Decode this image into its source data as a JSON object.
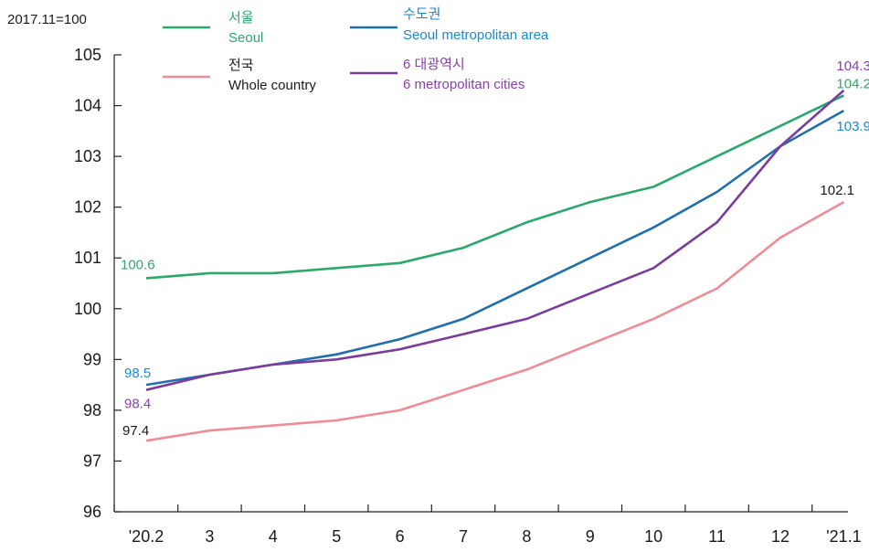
{
  "chart_data": {
    "type": "line",
    "base_label": "2017.11=100",
    "categories": [
      "'20.2",
      "3",
      "4",
      "5",
      "6",
      "7",
      "8",
      "9",
      "10",
      "11",
      "12",
      "'21.1"
    ],
    "ylim": [
      96,
      105
    ],
    "yticks": [
      "96",
      "97",
      "98",
      "99",
      "100",
      "101",
      "102",
      "103",
      "104",
      "105"
    ],
    "grid": false,
    "legend_position": "top",
    "series": [
      {
        "key": "seoul",
        "name_ko": "서울",
        "name_en": "Seoul",
        "color": "#2aa96b",
        "label_color": "#2aa96b",
        "values": [
          100.6,
          100.7,
          100.7,
          100.8,
          100.9,
          101.2,
          101.7,
          102.1,
          102.4,
          103.0,
          103.6,
          104.2
        ],
        "start_label": "100.6",
        "end_label": "104.2"
      },
      {
        "key": "capital",
        "name_ko": "수도권",
        "name_en": "Seoul metropolitan area",
        "color": "#1f6fb0",
        "label_color": "#1a8ad0",
        "values": [
          98.5,
          98.7,
          98.9,
          99.1,
          99.4,
          99.8,
          100.4,
          101.0,
          101.6,
          102.3,
          103.2,
          103.9
        ],
        "start_label": "98.5",
        "end_label": "103.9"
      },
      {
        "key": "whole",
        "name_ko": "전국",
        "name_en": "Whole country",
        "color": "#f08c96",
        "label_color": "#1a1a1a",
        "values": [
          97.4,
          97.6,
          97.7,
          97.8,
          98.0,
          98.4,
          98.8,
          99.3,
          99.8,
          100.4,
          101.4,
          102.1
        ],
        "start_label": "97.4",
        "end_label": "102.1"
      },
      {
        "key": "six",
        "name_ko": "6 대광역시",
        "name_en": "6 metropolitan cities",
        "color": "#7b3c9e",
        "label_color": "#8a3fae",
        "values": [
          98.4,
          98.7,
          98.9,
          99.0,
          99.2,
          99.5,
          99.8,
          100.3,
          100.8,
          101.7,
          103.2,
          104.3
        ],
        "start_label": "98.4",
        "end_label": "104.3"
      }
    ]
  }
}
